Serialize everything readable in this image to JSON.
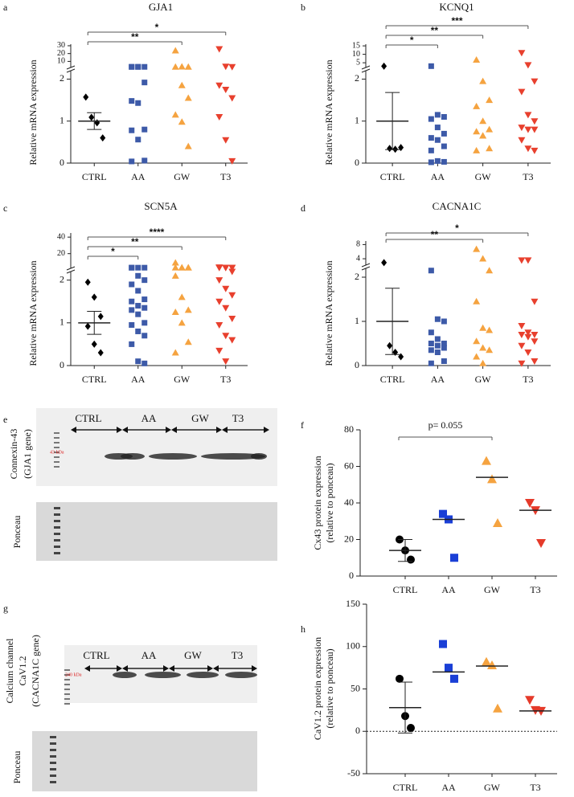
{
  "chart_data": [
    {
      "type": "dot-plot",
      "panel_label": "a",
      "title": "GJA1",
      "ylabel": [
        "Relative mRNA expression"
      ],
      "categories": [
        "CTRL",
        "AA",
        "GW",
        "T3"
      ],
      "colors": [
        "#000000",
        "#3d5aa8",
        "#f5a340",
        "#e8402e"
      ],
      "markers": [
        "diamond",
        "square",
        "triangle",
        "triangle-down"
      ],
      "values": [
        [
          1.57,
          1.09,
          0.96,
          0.6
        ],
        [
          3,
          3,
          3,
          3,
          3,
          1.92,
          1.48,
          1.43,
          0.8,
          0.78,
          0.56,
          0.06,
          0.04
        ],
        [
          23.8,
          3.2,
          3,
          3,
          1.85,
          1.55,
          1.15,
          0.98,
          0.4
        ],
        [
          25.8,
          3.5,
          3,
          1.85,
          1.75,
          1.55,
          1.1,
          0.55,
          0.05
        ]
      ],
      "means": [
        1.0,
        null,
        null,
        null
      ],
      "errors": [
        0.2,
        null,
        null,
        null
      ],
      "ylim": [
        0,
        2.2
      ],
      "yticks": [
        0,
        1,
        2
      ],
      "upper_ylim": [
        2.2,
        32
      ],
      "upper_yticks": [
        10,
        20,
        30
      ],
      "comparisons": [
        {
          "from": 0,
          "to": 3,
          "label": "*"
        },
        {
          "from": 0,
          "to": 2,
          "label": "**"
        }
      ]
    },
    {
      "type": "dot-plot",
      "panel_label": "b",
      "title": "KCNQ1",
      "ylabel": [
        "Relative mRNA expression"
      ],
      "categories": [
        "CTRL",
        "AA",
        "GW",
        "T3"
      ],
      "colors": [
        "#000000",
        "#3d5aa8",
        "#f5a340",
        "#e8402e"
      ],
      "markers": [
        "diamond",
        "square",
        "triangle",
        "triangle-down"
      ],
      "values": [
        [
          3,
          0.35,
          0.33,
          0.37
        ],
        [
          3,
          1.15,
          1.1,
          1.05,
          0.85,
          0.7,
          0.6,
          0.55,
          0.4,
          0.3,
          0.05,
          0.03,
          0.02
        ],
        [
          6.7,
          1.95,
          1.5,
          1.35,
          1.0,
          0.8,
          0.75,
          0.65,
          0.35,
          0.3,
          0.65
        ],
        [
          10.9,
          3.7,
          1.95,
          1.7,
          1.15,
          1.0,
          0.85,
          0.8,
          0.8,
          0.55,
          0.35,
          0.3
        ]
      ],
      "means": [
        1.0,
        null,
        null,
        null
      ],
      "errors": [
        0.68,
        null,
        null,
        null
      ],
      "ylim": [
        0,
        2.2
      ],
      "yticks": [
        0,
        1,
        2
      ],
      "upper_ylim": [
        2.2,
        16
      ],
      "upper_yticks": [
        5,
        10,
        15
      ],
      "comparisons": [
        {
          "from": 0,
          "to": 3,
          "label": "***"
        },
        {
          "from": 0,
          "to": 2,
          "label": "**"
        },
        {
          "from": 0,
          "to": 1,
          "label": "*"
        }
      ]
    },
    {
      "type": "dot-plot",
      "panel_label": "c",
      "title": "SCN5A",
      "ylabel": [
        "Relative mRNA expression"
      ],
      "categories": [
        "CTRL",
        "AA",
        "GW",
        "T3"
      ],
      "colors": [
        "#000000",
        "#3d5aa8",
        "#f5a340",
        "#e8402e"
      ],
      "markers": [
        "diamond",
        "square",
        "triangle",
        "triangle-down"
      ],
      "values": [
        [
          1.95,
          1.6,
          1.15,
          0.92,
          0.5,
          0.3
        ],
        [
          3,
          3,
          3,
          3,
          2.1,
          2.0,
          1.9,
          1.75,
          1.55,
          1.5,
          1.4,
          1.35,
          1.3,
          1.2,
          1.0,
          0.95,
          0.8,
          0.7,
          0.5,
          0.1,
          0.05
        ],
        [
          9,
          3,
          3,
          3,
          3,
          3,
          2.1,
          1.6,
          1.3,
          1.25,
          1.0,
          0.55,
          0.3
        ],
        [
          3.5,
          3,
          3,
          3,
          3,
          3,
          3,
          3,
          2.2,
          2.0,
          1.8,
          1.65,
          1.5,
          1.35,
          1.1,
          0.95,
          0.7,
          0.6,
          0.35,
          0.1
        ]
      ],
      "means": [
        1.0,
        null,
        null,
        null
      ],
      "errors": [
        0.27,
        null,
        null,
        null
      ],
      "ylim": [
        0,
        2.2
      ],
      "yticks": [
        0,
        1,
        2
      ],
      "upper_ylim": [
        2.2,
        45
      ],
      "upper_yticks": [
        20,
        40
      ],
      "comparisons": [
        {
          "from": 0,
          "to": 3,
          "label": "****"
        },
        {
          "from": 0,
          "to": 2,
          "label": "**"
        },
        {
          "from": 0,
          "to": 1,
          "label": "*"
        }
      ]
    },
    {
      "type": "dot-plot",
      "panel_label": "d",
      "title": "CACNA1C",
      "ylabel": [
        "Relative mRNA expression"
      ],
      "categories": [
        "CTRL",
        "AA",
        "GW",
        "T3"
      ],
      "colors": [
        "#000000",
        "#3d5aa8",
        "#f5a340",
        "#e8402e"
      ],
      "markers": [
        "diamond",
        "square",
        "triangle",
        "triangle-down"
      ],
      "values": [
        [
          2.9,
          0.45,
          0.3,
          0.2
        ],
        [
          2.15,
          1.05,
          1.0,
          0.75,
          0.6,
          0.5,
          0.5,
          0.45,
          0.4,
          0.35,
          0.3,
          0.1,
          0.05
        ],
        [
          6.7,
          4,
          2.15,
          1.45,
          0.85,
          0.8,
          0.55,
          0.4,
          0.35,
          0.2,
          0.05
        ],
        [
          3.6,
          3.6,
          1.45,
          0.9,
          0.75,
          0.7,
          0.7,
          0.65,
          0.55,
          0.45,
          0.3,
          0.1,
          0.05
        ]
      ],
      "means": [
        1.0,
        null,
        null,
        null
      ],
      "errors": [
        0.75,
        null,
        null,
        null
      ],
      "ylim": [
        0,
        2.2
      ],
      "yticks": [
        0,
        1,
        2
      ],
      "upper_ylim": [
        2.2,
        9
      ],
      "upper_yticks": [
        4,
        8
      ],
      "comparisons": [
        {
          "from": 0,
          "to": 3,
          "label": "*"
        },
        {
          "from": 0,
          "to": 2,
          "label": "**"
        }
      ]
    },
    {
      "type": "dot-plot",
      "panel_label": "f",
      "ylabel": [
        "Cx43 protein expression",
        "(relative to ponceau)"
      ],
      "categories": [
        "CTRL",
        "AA",
        "GW",
        "T3"
      ],
      "colors": [
        "#000000",
        "#1a3fd6",
        "#f5a340",
        "#e53a2a"
      ],
      "markers": [
        "circle",
        "square",
        "triangle",
        "triangle-down"
      ],
      "values": [
        [
          20,
          14,
          9
        ],
        [
          34,
          31,
          10
        ],
        [
          63,
          53,
          29
        ],
        [
          40,
          36,
          18
        ]
      ],
      "means": [
        14,
        31,
        54,
        36
      ],
      "errors": [
        6,
        null,
        null,
        null
      ],
      "ylim": [
        0,
        80
      ],
      "yticks": [
        0,
        20,
        40,
        60,
        80
      ],
      "comparisons": [
        {
          "from": 0,
          "to": 2,
          "label": "p= 0.055"
        }
      ]
    },
    {
      "type": "dot-plot",
      "panel_label": "h",
      "ylabel": [
        "CaV1.2 protein expression",
        "(relative to ponceau)"
      ],
      "categories": [
        "CTRL",
        "AA",
        "GW",
        "T3"
      ],
      "colors": [
        "#000000",
        "#1a3fd6",
        "#f5a340",
        "#e53a2a"
      ],
      "markers": [
        "circle",
        "square",
        "triangle",
        "triangle-down"
      ],
      "values": [
        [
          62,
          18,
          4
        ],
        [
          103,
          75,
          62
        ],
        [
          82,
          78,
          27
        ],
        [
          37,
          25,
          24
        ]
      ],
      "means": [
        28,
        70,
        77,
        24
      ],
      "errors": [
        30,
        null,
        null,
        null
      ],
      "ylim": [
        -50,
        150
      ],
      "yticks": [
        -50,
        0,
        50,
        100,
        150
      ],
      "zero_line": true
    }
  ],
  "blots": [
    {
      "panel_label": "e",
      "ylabel": [
        "Connexin-43",
        "(GJA1 gene)"
      ],
      "lanes": [
        "CTRL",
        "AA",
        "GW",
        "T3"
      ],
      "marker": "43 kDa",
      "stain": "Ponceau"
    },
    {
      "panel_label": "g",
      "ylabel": [
        "Calcium channel",
        "CaV1.2",
        "(CACNA1C gene)"
      ],
      "lanes": [
        "CTRL",
        "AA",
        "GW",
        "T3"
      ],
      "marker": "240 kDa",
      "stain": "Ponceau"
    }
  ]
}
